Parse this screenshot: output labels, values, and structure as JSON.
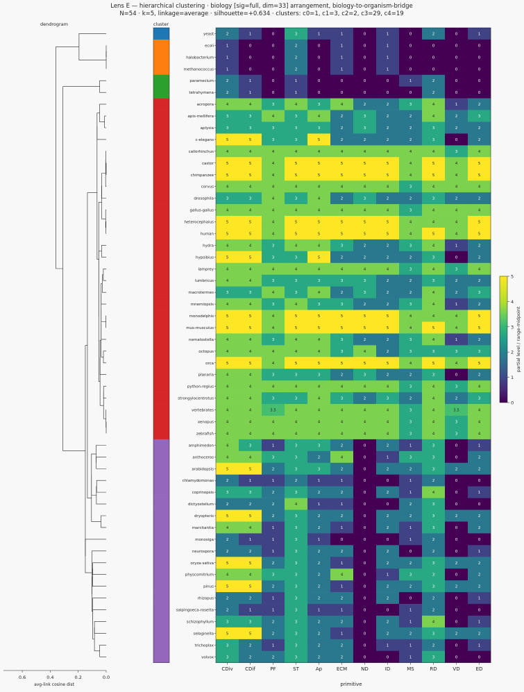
{
  "chart_data": {
    "type": "heatmap",
    "title": "Lens E — hierarchical clustering · biology [sig=full, dim=33] arrangement, biology-to-organism-bridge",
    "subtitle": "N=54 · k=5, linkage=average · silhouette=+0.634 · clusters: c0=1, c1=3, c2=2, c3=29, c4=19",
    "dendrogram_title": "dendrogram",
    "cluster_strip_title": "cluster",
    "xlabel": "primitive",
    "dendrogram_xlabel": "avg-link cosine dist",
    "dendrogram_xticks": [
      "0.6",
      "0.4",
      "0.2",
      "0.0"
    ],
    "colorbar_label": "partial level / range-midpoint",
    "colorbar_ticks": [
      "0",
      "1",
      "2",
      "3",
      "4",
      "5"
    ],
    "vmin": 0,
    "vmax": 5,
    "columns": [
      "CDiv",
      "CDif",
      "PF",
      "ST",
      "Ap",
      "ECM",
      "ND",
      "ID",
      "MS",
      "RD",
      "VD",
      "ED"
    ],
    "cluster_colors": [
      "#1f77b4",
      "#ff7f0e",
      "#2ca02c",
      "#d62728",
      "#9467bd"
    ],
    "rows": [
      {
        "name": "yeast",
        "cluster": 0,
        "values": [
          2,
          1,
          0,
          3,
          1,
          1,
          0,
          1,
          0,
          2,
          0,
          1
        ]
      },
      {
        "name": "ecoli",
        "cluster": 1,
        "values": [
          1,
          0,
          0,
          2,
          0,
          1,
          0,
          1,
          0,
          0,
          0,
          0
        ]
      },
      {
        "name": "halobacterium",
        "cluster": 1,
        "values": [
          1,
          0,
          0,
          2,
          0,
          1,
          0,
          1,
          0,
          0,
          0,
          0
        ]
      },
      {
        "name": "methanococcus",
        "cluster": 1,
        "values": [
          1,
          0,
          0,
          2,
          0,
          1,
          0,
          1,
          0,
          0,
          0,
          0
        ]
      },
      {
        "name": "paramecium",
        "cluster": 2,
        "values": [
          2,
          1,
          0,
          1,
          0,
          0,
          0,
          0,
          1,
          2,
          0,
          0
        ]
      },
      {
        "name": "tetrahymena",
        "cluster": 2,
        "values": [
          2,
          1,
          0,
          1,
          0,
          0,
          0,
          0,
          0,
          2,
          0,
          0
        ]
      },
      {
        "name": "acropora",
        "cluster": 3,
        "values": [
          4,
          4,
          3,
          4,
          3,
          4,
          2,
          2,
          3,
          4,
          1,
          2
        ]
      },
      {
        "name": "apis-mellifera",
        "cluster": 3,
        "values": [
          3,
          3,
          4,
          3,
          4,
          2,
          3,
          2,
          2,
          4,
          2,
          3
        ]
      },
      {
        "name": "aplysia",
        "cluster": 3,
        "values": [
          3,
          3,
          3,
          3,
          3,
          2,
          3,
          2,
          2,
          3,
          2,
          2
        ]
      },
      {
        "name": "c-elegans",
        "cluster": 3,
        "values": [
          5,
          5,
          3,
          3,
          5,
          2,
          2,
          2,
          2,
          3,
          0,
          2
        ]
      },
      {
        "name": "callorhinchus",
        "cluster": 3,
        "values": [
          4,
          4,
          4,
          4,
          4,
          4,
          4,
          4,
          4,
          4,
          3,
          4
        ]
      },
      {
        "name": "castor",
        "cluster": 3,
        "values": [
          5,
          5,
          4,
          5,
          5,
          5,
          5,
          5,
          4,
          5,
          4,
          5
        ]
      },
      {
        "name": "chimpanzee",
        "cluster": 3,
        "values": [
          5,
          5,
          4,
          5,
          5,
          5,
          5,
          5,
          4,
          5,
          4,
          5
        ]
      },
      {
        "name": "corvus",
        "cluster": 3,
        "values": [
          4,
          4,
          4,
          4,
          4,
          4,
          4,
          4,
          3,
          4,
          4,
          4
        ]
      },
      {
        "name": "drosophila",
        "cluster": 3,
        "values": [
          3,
          3,
          4,
          3,
          4,
          2,
          3,
          2,
          2,
          3,
          2,
          2
        ]
      },
      {
        "name": "gallus-gallus",
        "cluster": 3,
        "values": [
          4,
          4,
          4,
          4,
          4,
          4,
          4,
          4,
          3,
          4,
          4,
          4
        ]
      },
      {
        "name": "heterocephalus",
        "cluster": 3,
        "values": [
          5,
          5,
          4,
          5,
          5,
          5,
          5,
          5,
          4,
          4,
          4,
          5
        ]
      },
      {
        "name": "human",
        "cluster": 3,
        "values": [
          5,
          5,
          4,
          5,
          5,
          5,
          5,
          5,
          4,
          5,
          4,
          5
        ]
      },
      {
        "name": "hydra",
        "cluster": 3,
        "values": [
          4,
          4,
          3,
          4,
          4,
          3,
          2,
          2,
          3,
          4,
          1,
          2
        ]
      },
      {
        "name": "hypsibius",
        "cluster": 3,
        "values": [
          5,
          5,
          3,
          3,
          5,
          2,
          2,
          2,
          2,
          3,
          0,
          2
        ]
      },
      {
        "name": "lamprey",
        "cluster": 3,
        "values": [
          4,
          4,
          4,
          4,
          4,
          4,
          4,
          4,
          3,
          4,
          3,
          4
        ]
      },
      {
        "name": "lumbricus",
        "cluster": 3,
        "values": [
          4,
          4,
          3,
          3,
          3,
          3,
          3,
          2,
          2,
          3,
          2,
          2
        ]
      },
      {
        "name": "macrotermes",
        "cluster": 3,
        "values": [
          3,
          3,
          4,
          3,
          4,
          2,
          3,
          2,
          2,
          4,
          2,
          3
        ]
      },
      {
        "name": "mnemiopsis",
        "cluster": 3,
        "values": [
          4,
          4,
          3,
          4,
          3,
          3,
          2,
          2,
          3,
          4,
          1,
          2
        ]
      },
      {
        "name": "monodelphis",
        "cluster": 3,
        "values": [
          5,
          5,
          4,
          5,
          5,
          5,
          5,
          5,
          4,
          4,
          4,
          5
        ]
      },
      {
        "name": "mus-musculus",
        "cluster": 3,
        "values": [
          5,
          5,
          4,
          5,
          5,
          5,
          5,
          5,
          4,
          5,
          4,
          5
        ]
      },
      {
        "name": "nematostella",
        "cluster": 3,
        "values": [
          4,
          4,
          3,
          4,
          4,
          3,
          2,
          2,
          3,
          4,
          1,
          2
        ]
      },
      {
        "name": "octopus",
        "cluster": 3,
        "values": [
          4,
          4,
          4,
          4,
          4,
          3,
          4,
          2,
          3,
          3,
          3,
          3
        ]
      },
      {
        "name": "orca",
        "cluster": 3,
        "values": [
          5,
          5,
          4,
          5,
          5,
          5,
          5,
          5,
          4,
          5,
          4,
          5
        ]
      },
      {
        "name": "planaria",
        "cluster": 3,
        "values": [
          4,
          4,
          3,
          3,
          3,
          2,
          3,
          2,
          2,
          3,
          0,
          2
        ]
      },
      {
        "name": "python-regius",
        "cluster": 3,
        "values": [
          4,
          4,
          4,
          4,
          4,
          4,
          4,
          4,
          3,
          4,
          3,
          4
        ]
      },
      {
        "name": "strongylocentrotus",
        "cluster": 3,
        "values": [
          4,
          4,
          3,
          3,
          4,
          3,
          2,
          3,
          2,
          4,
          2,
          3
        ]
      },
      {
        "name": "vertebrates",
        "cluster": 3,
        "values": [
          4,
          4,
          3.5,
          4,
          4,
          4,
          4,
          4,
          3,
          4,
          3.5,
          4
        ]
      },
      {
        "name": "xenopus",
        "cluster": 3,
        "values": [
          4,
          4,
          4,
          4,
          4,
          4,
          4,
          4,
          3,
          4,
          3,
          4
        ]
      },
      {
        "name": "zebrafish",
        "cluster": 3,
        "values": [
          4,
          4,
          4,
          4,
          4,
          4,
          4,
          4,
          3,
          4,
          3,
          4
        ]
      },
      {
        "name": "amphimedon",
        "cluster": 4,
        "values": [
          4,
          3,
          1,
          3,
          3,
          2,
          0,
          2,
          1,
          3,
          0,
          1
        ]
      },
      {
        "name": "anthoceros",
        "cluster": 4,
        "values": [
          4,
          4,
          3,
          3,
          2,
          4,
          0,
          1,
          3,
          3,
          0,
          2
        ]
      },
      {
        "name": "arabidopsis",
        "cluster": 4,
        "values": [
          5,
          5,
          2,
          3,
          3,
          2,
          0,
          2,
          2,
          3,
          2,
          2
        ]
      },
      {
        "name": "chlamydomonas",
        "cluster": 4,
        "values": [
          2,
          1,
          1,
          2,
          1,
          1,
          0,
          0,
          1,
          2,
          0,
          0
        ]
      },
      {
        "name": "coprinopsis",
        "cluster": 4,
        "values": [
          3,
          3,
          2,
          3,
          2,
          2,
          0,
          2,
          1,
          4,
          0,
          1
        ]
      },
      {
        "name": "dictyostelium",
        "cluster": 4,
        "values": [
          2,
          2,
          2,
          4,
          1,
          1,
          0,
          0,
          2,
          3,
          0,
          0
        ]
      },
      {
        "name": "dryopteris",
        "cluster": 4,
        "values": [
          5,
          5,
          2,
          3,
          2,
          2,
          0,
          2,
          2,
          3,
          2,
          2
        ]
      },
      {
        "name": "marchantia",
        "cluster": 4,
        "values": [
          4,
          4,
          1,
          3,
          2,
          1,
          0,
          2,
          1,
          3,
          0,
          2
        ]
      },
      {
        "name": "monosiga",
        "cluster": 4,
        "values": [
          2,
          1,
          1,
          3,
          1,
          0,
          0,
          0,
          1,
          2,
          0,
          0
        ]
      },
      {
        "name": "neurospora",
        "cluster": 4,
        "values": [
          2,
          2,
          1,
          3,
          2,
          2,
          0,
          2,
          0,
          2,
          0,
          1
        ]
      },
      {
        "name": "oryza-sativa",
        "cluster": 4,
        "values": [
          5,
          5,
          2,
          3,
          2,
          1,
          0,
          2,
          2,
          3,
          2,
          2
        ]
      },
      {
        "name": "physcomitrium",
        "cluster": 4,
        "values": [
          4,
          4,
          3,
          3,
          2,
          4,
          0,
          1,
          3,
          3,
          0,
          2
        ]
      },
      {
        "name": "pinus",
        "cluster": 4,
        "values": [
          5,
          5,
          2,
          3,
          2,
          1,
          0,
          2,
          2,
          3,
          2,
          2
        ]
      },
      {
        "name": "rhizopus",
        "cluster": 4,
        "values": [
          2,
          2,
          1,
          3,
          2,
          2,
          0,
          2,
          0,
          2,
          0,
          1
        ]
      },
      {
        "name": "salpingoeca-rosetta",
        "cluster": 4,
        "values": [
          2,
          1,
          1,
          3,
          1,
          1,
          0,
          0,
          1,
          2,
          0,
          0
        ]
      },
      {
        "name": "schizophyllum",
        "cluster": 4,
        "values": [
          3,
          3,
          2,
          3,
          2,
          2,
          0,
          2,
          1,
          4,
          0,
          1
        ]
      },
      {
        "name": "selaginella",
        "cluster": 4,
        "values": [
          5,
          5,
          2,
          3,
          2,
          1,
          0,
          2,
          2,
          3,
          2,
          2
        ]
      },
      {
        "name": "trichoplax",
        "cluster": 4,
        "values": [
          3,
          2,
          1,
          3,
          2,
          2,
          0,
          1,
          1,
          2,
          0,
          1
        ]
      },
      {
        "name": "volvox",
        "cluster": 4,
        "values": [
          3,
          2,
          2,
          3,
          2,
          2,
          0,
          0,
          1,
          3,
          0,
          0
        ]
      }
    ]
  }
}
